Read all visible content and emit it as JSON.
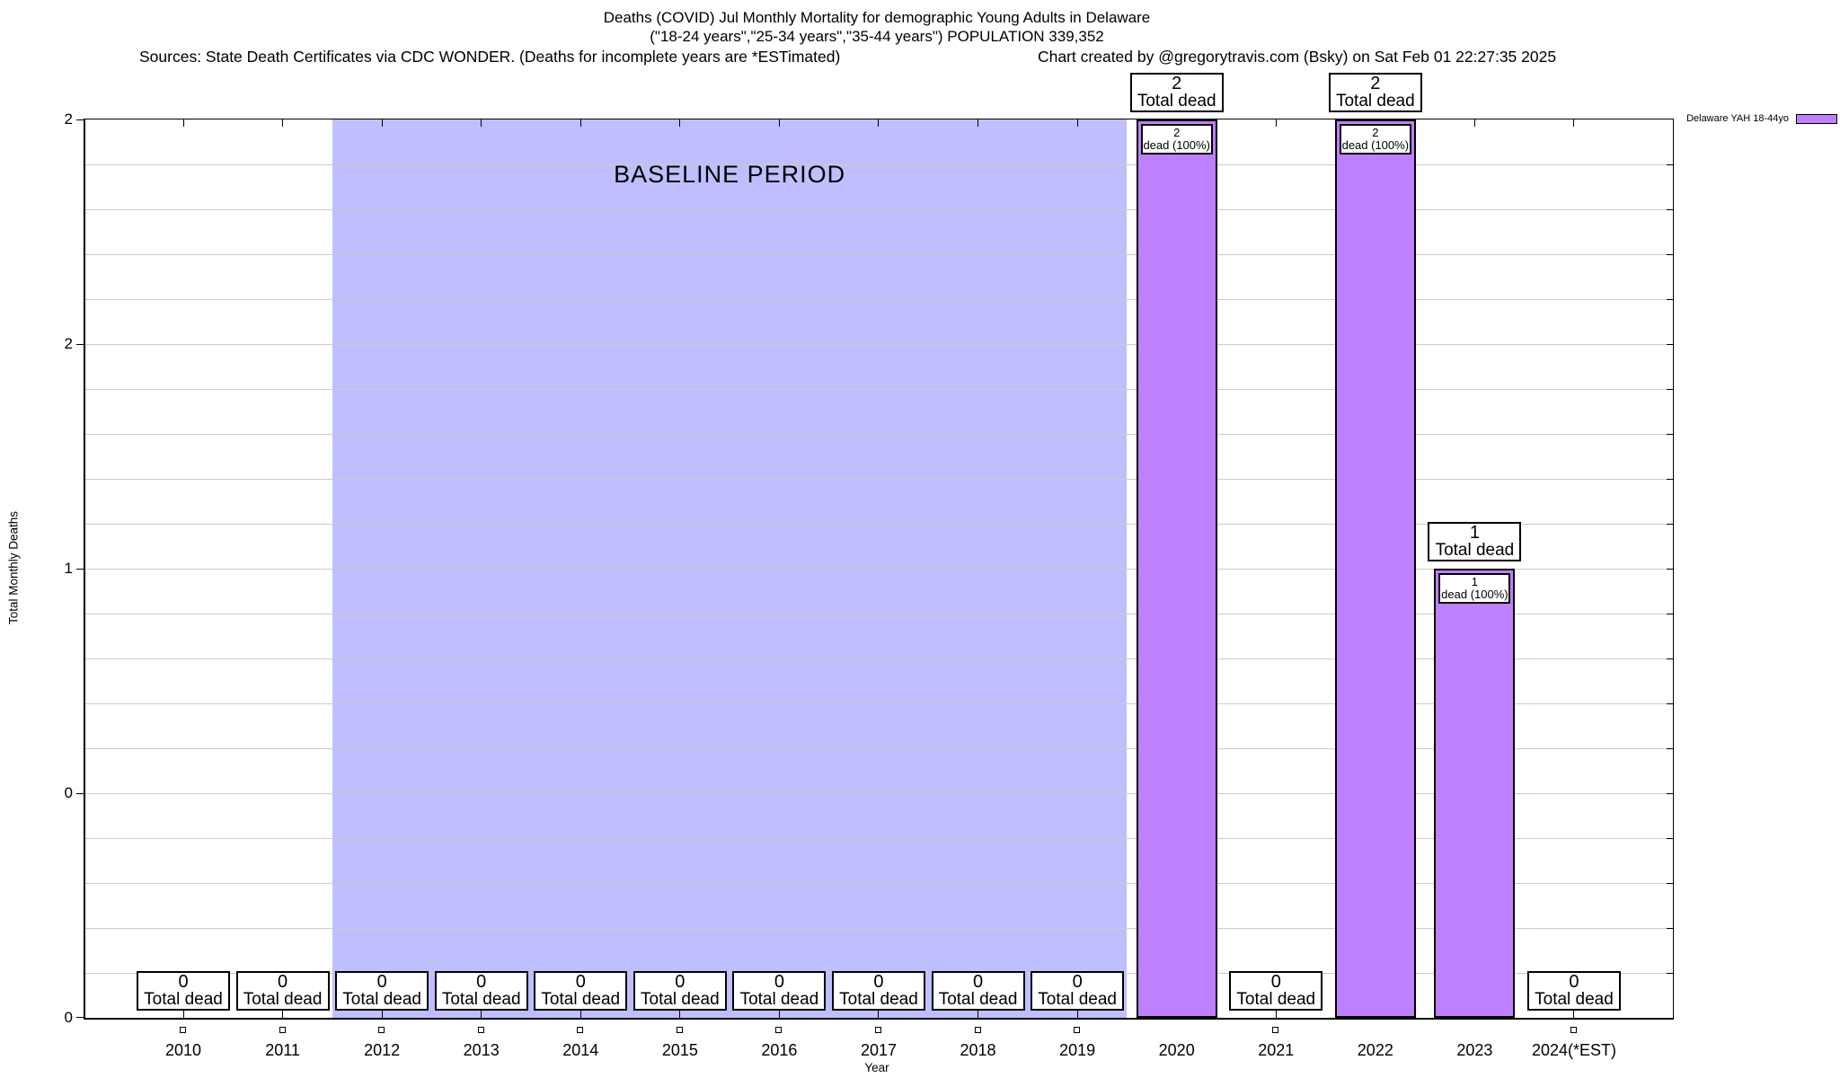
{
  "title": {
    "line1": "Deaths (COVID) Jul Monthly Mortality for demographic Young Adults in Delaware",
    "line2": "(\"18-24 years\",\"25-34 years\",\"35-44 years\") POPULATION 339,352",
    "sources": "Sources: State Death Certificates via CDC WONDER. (Deaths for incomplete years are *ESTimated)",
    "credit": "Chart created by @gregorytravis.com (Bsky) on Sat Feb 01 22:27:35 2025"
  },
  "legend": {
    "label": "Delaware YAH 18-44yo",
    "swatch_color": "#bf80ff"
  },
  "axes": {
    "ylabel": "Total Monthly Deaths",
    "xlabel": "Year",
    "yticks": [
      {
        "value": 2.0,
        "label": "2"
      },
      {
        "value": 1.5,
        "label": "2"
      },
      {
        "value": 1.0,
        "label": "1"
      },
      {
        "value": 0.5,
        "label": "0"
      },
      {
        "value": 0.0,
        "label": "0"
      }
    ]
  },
  "annotations": {
    "total_dead_label": "Total dead",
    "dead_pct_label": "dead (100%)"
  },
  "baseline": {
    "label": "BASELINE PERIOD",
    "fill": "#bfbfff"
  },
  "chart_data": {
    "type": "bar",
    "title": "Deaths (COVID) Jul Monthly Mortality for demographic Young Adults in Delaware (\"18-24 years\",\"25-34 years\",\"35-44 years\") POPULATION 339,352",
    "categories": [
      "2010",
      "2011",
      "2012",
      "2013",
      "2014",
      "2015",
      "2016",
      "2017",
      "2018",
      "2019",
      "2020",
      "2021",
      "2022",
      "2023",
      "2024(*EST)"
    ],
    "values": [
      0,
      0,
      0,
      0,
      0,
      0,
      0,
      0,
      0,
      0,
      2,
      0,
      2,
      1,
      0
    ],
    "series_name": "Delaware YAH 18-44yo",
    "xlabel": "Year",
    "ylabel": "Total Monthly Deaths",
    "ylim": [
      0,
      2
    ],
    "ytick_display_labels": [
      "2",
      "2",
      "1",
      "0",
      "0"
    ],
    "grid": "horizontal gridlines every 0.1 units",
    "legend_position": "top-right outside plot",
    "bar_color": "#bf80ff",
    "bar_border_color": "#000000",
    "baseline_period": {
      "from_year": 2012,
      "to_year": 2019,
      "label": "BASELINE PERIOD",
      "fill": "#bfbfff"
    },
    "bar_value_labels": [
      {
        "year": "2020",
        "callout": [
          "2",
          "Total dead"
        ],
        "inner": [
          "2",
          "dead (100%)"
        ]
      },
      {
        "year": "2022",
        "callout": [
          "2",
          "Total dead"
        ],
        "inner": [
          "2",
          "dead (100%)"
        ]
      },
      {
        "year": "2023",
        "callout": [
          "1",
          "Total dead"
        ],
        "inner": [
          "1",
          "dead (100%)"
        ]
      }
    ],
    "zero_value_years": [
      "2010",
      "2011",
      "2012",
      "2013",
      "2014",
      "2015",
      "2016",
      "2017",
      "2018",
      "2019",
      "2021",
      "2024(*EST)"
    ]
  }
}
